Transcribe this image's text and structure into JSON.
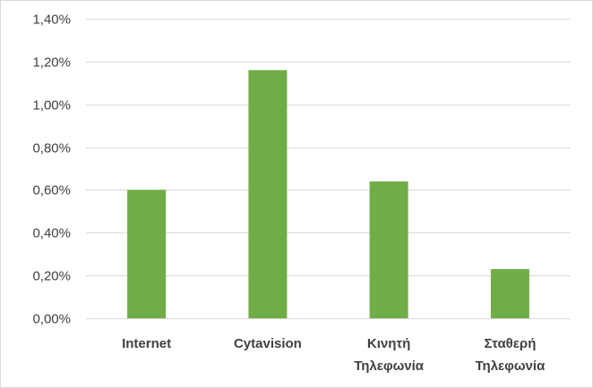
{
  "chart_data": {
    "type": "bar",
    "categories": [
      [
        "Internet"
      ],
      [
        "Cytavision"
      ],
      [
        "Κινητή",
        "Τηλεφωνία"
      ],
      [
        "Σταθερή",
        "Τηλεφωνία"
      ]
    ],
    "values": [
      0.6,
      1.16,
      0.64,
      0.23
    ],
    "ylim": [
      0,
      1.4
    ],
    "yticks": [
      "0,00%",
      "0,20%",
      "0,40%",
      "0,60%",
      "0,80%",
      "1,00%",
      "1,20%",
      "1,40%"
    ],
    "ytick_values": [
      0,
      0.2,
      0.4,
      0.6,
      0.8,
      1.0,
      1.2,
      1.4
    ],
    "grid": true,
    "bar_color": "#70ad47",
    "title": "",
    "xlabel": "",
    "ylabel": ""
  }
}
